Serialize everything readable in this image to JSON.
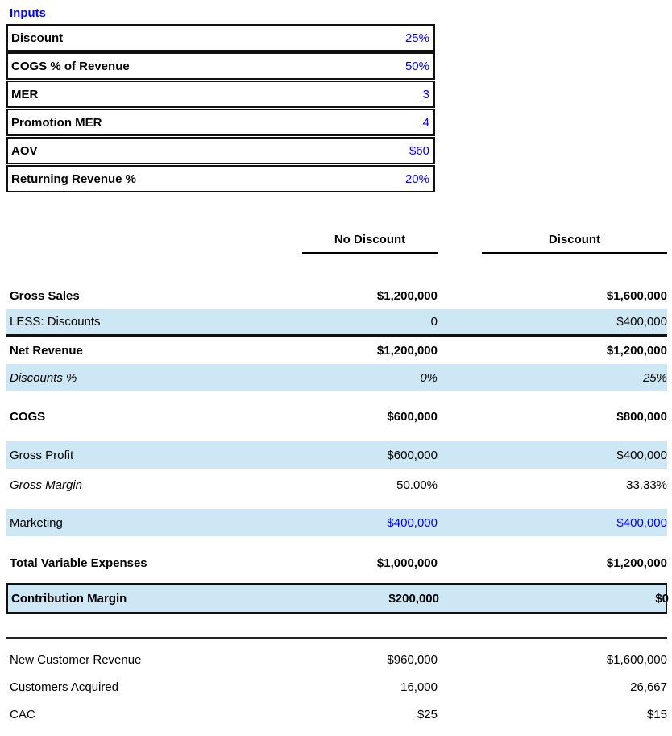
{
  "colors": {
    "accent_blue": "#0000ff",
    "row_highlight": "#cde7f5",
    "border_black": "#111111"
  },
  "inputs": {
    "title": "Inputs",
    "rows": [
      {
        "label": "Discount",
        "value": "25%"
      },
      {
        "label": "COGS % of Revenue",
        "value": "50%"
      },
      {
        "label": "MER",
        "value": "3"
      },
      {
        "label": "Promotion MER",
        "value": "4"
      },
      {
        "label": "AOV",
        "value": "$60"
      },
      {
        "label": "Returning Revenue %",
        "value": "20%"
      }
    ]
  },
  "table": {
    "columns": {
      "col1": "No Discount",
      "col2": "Discount"
    },
    "rows": [
      {
        "label": "Gross Sales",
        "no_discount": "$1,200,000",
        "discount": "$1,600,000"
      },
      {
        "label": "LESS: Discounts",
        "no_discount": "0",
        "discount": "$400,000"
      },
      {
        "label": "Net Revenue",
        "no_discount": "$1,200,000",
        "discount": "$1,200,000"
      },
      {
        "label": "Discounts %",
        "no_discount": "0%",
        "discount": "25%"
      },
      {
        "label": "COGS",
        "no_discount": "$600,000",
        "discount": "$800,000"
      },
      {
        "label": "Gross Profit",
        "no_discount": "$600,000",
        "discount": "$400,000"
      },
      {
        "label": "Gross Margin",
        "no_discount": "50.00%",
        "discount": "33.33%"
      },
      {
        "label": "Marketing",
        "no_discount": "$400,000",
        "discount": "$400,000"
      },
      {
        "label": "Total Variable Expenses",
        "no_discount": "$1,000,000",
        "discount": "$1,200,000"
      },
      {
        "label": "Contribution Margin",
        "no_discount": "$200,000",
        "discount": "$0"
      },
      {
        "label": "New Customer Revenue",
        "no_discount": "$960,000",
        "discount": "$1,600,000"
      },
      {
        "label": "Customers Acquired",
        "no_discount": "16,000",
        "discount": "26,667"
      },
      {
        "label": "CAC",
        "no_discount": "$25",
        "discount": "$15"
      }
    ]
  }
}
